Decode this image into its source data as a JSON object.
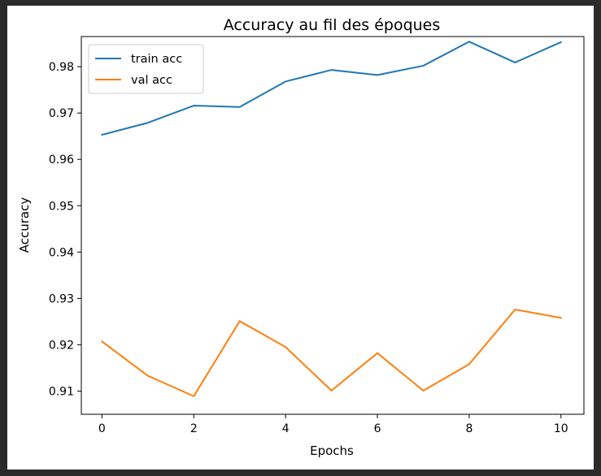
{
  "chart_data": {
    "type": "line",
    "title": "Accuracy au fil des époques",
    "xlabel": "Epochs",
    "ylabel": "Accuracy",
    "x": [
      0,
      1,
      2,
      3,
      4,
      5,
      6,
      7,
      8,
      9,
      10
    ],
    "xticks": [
      0,
      2,
      4,
      6,
      8,
      10
    ],
    "yticks": [
      0.91,
      0.92,
      0.93,
      0.94,
      0.95,
      0.96,
      0.97,
      0.98
    ],
    "xlim": [
      -0.45,
      10.5
    ],
    "ylim": [
      0.905,
      0.9865
    ],
    "grid": false,
    "legend_position": "top-left",
    "series": [
      {
        "name": "train acc",
        "color": "#1f77b4",
        "values": [
          0.9653,
          0.9679,
          0.9716,
          0.9713,
          0.9768,
          0.9793,
          0.9782,
          0.9802,
          0.9854,
          0.9809,
          0.9853
        ]
      },
      {
        "name": "val acc",
        "color": "#ff7f0e",
        "values": [
          0.9207,
          0.9133,
          0.9089,
          0.9251,
          0.9195,
          0.9101,
          0.9182,
          0.9101,
          0.9158,
          0.9276,
          0.9258
        ]
      }
    ]
  }
}
